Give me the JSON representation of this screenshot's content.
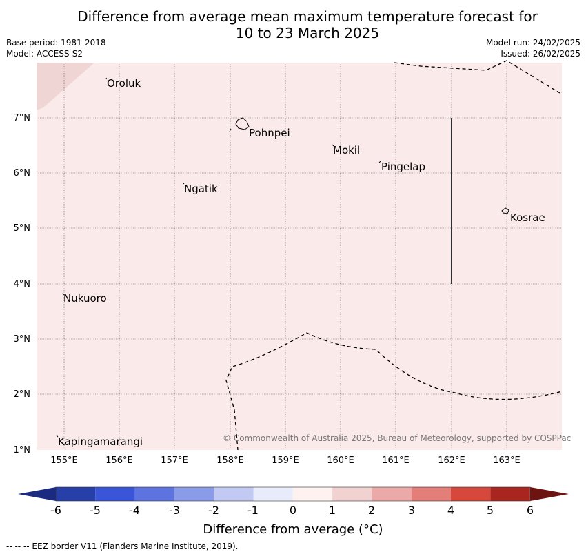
{
  "title_line1": "Difference from average mean maximum temperature forecast for",
  "title_line2": "10 to 23 March 2025",
  "base_period": "Base period: 1981-2018",
  "model": "Model: ACCESS-S2",
  "model_run": "Model run: 24/02/2025",
  "issued": "Issued: 26/02/2025",
  "lat_labels": [
    "7°N",
    "6°N",
    "5°N",
    "4°N",
    "3°N",
    "2°N",
    "1°N"
  ],
  "lon_labels": [
    "155°E",
    "156°E",
    "157°E",
    "158°E",
    "159°E",
    "160°E",
    "161°E",
    "162°E",
    "163°E"
  ],
  "places": {
    "oroluk": "Oroluk",
    "pohnpei": "Pohnpei",
    "mokil": "Mokil",
    "pingelap": "Pingelap",
    "ngatik": "Ngatik",
    "kosrae": "Kosrae",
    "nukuoro": "Nukuoro",
    "kapingamarangi": "Kapingamarangi"
  },
  "copyright": "© Commonwealth of Australia 2025, Bureau of Meteorology, supported by COSPPac",
  "colorbar": {
    "ticks": [
      "-6",
      "-5",
      "-4",
      "-3",
      "-2",
      "-1",
      "0",
      "1",
      "2",
      "3",
      "4",
      "5",
      "6"
    ],
    "colors": [
      "#1a2a80",
      "#273fa8",
      "#3b55d8",
      "#5d74e0",
      "#8a9ce8",
      "#c2c9f2",
      "#e8ebfa",
      "#fdf2f0",
      "#f2d2d0",
      "#ebaaa8",
      "#e47e78",
      "#d6473c",
      "#a8261f",
      "#6e1410"
    ],
    "title": "Difference from average (°C)"
  },
  "footnote": "-- -- -- EEZ border V11 (Flanders Marine Institute, 2019).",
  "map_fill_color": "#fbeaea",
  "map_corner_color": "#efd6d4"
}
